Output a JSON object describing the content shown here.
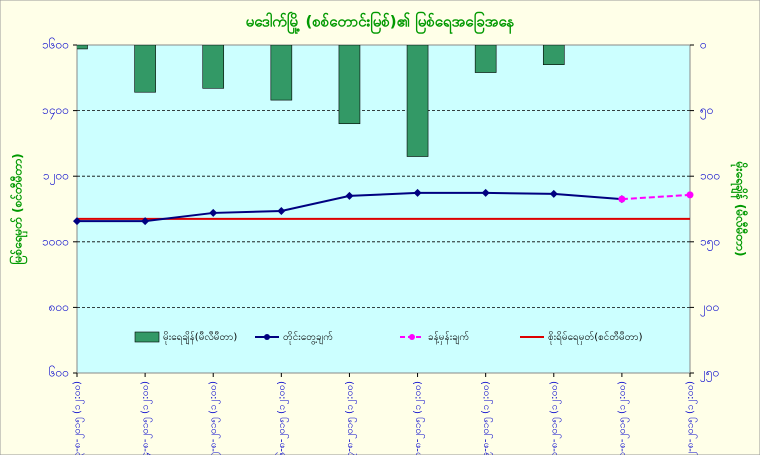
{
  "chart_data": {
    "type": "combo",
    "title": "မဒေါက်မြို့ (စစ်တောင်းမြစ်)၏ မြစ်ရေအခြေအနေ",
    "y_label": "မြစ်ရေမှတ် (စင်တီမီတာ)",
    "y2_label": "မိုးရေချိန် (မီလီမီတာ)",
    "categories": [
      "၃-၈-၂၀၁၅ (၁၂:၀၀)",
      "၄-၈-၂၀၁၅ (၁၂:၀၀)",
      "၅-၈-၂၀၁၅ (၁၂:၀၀)",
      "၆-၈-၂၀၁၅ (၁၂:၀၀)",
      "၇-၈-၂၀၁၅ (၁၂:၀၀)",
      "၈-၈-၂၀၁၅ (၁၂:၀၀)",
      "၉-၈-၂၀၁၅ (၁၂:၀၀)",
      "၁၀-၈-၂၀၁၅ (၁၂:၀၀)",
      "၁၁-၈-၂၀၁၅ (၁၂:၀၀)",
      "၁၂-၈-၂၀၁၅ (၁၂:၀၀)"
    ],
    "series": [
      {
        "name": "မိုးရေချိန်(မီလီမီတာ)",
        "kind": "bar",
        "axis": "y2",
        "color": "#339966",
        "values": [
          3,
          36,
          33,
          42,
          60,
          85,
          21,
          15,
          null,
          null
        ]
      },
      {
        "name": "တိုင်းတွေ့ချက်",
        "kind": "line",
        "color": "#000080",
        "marker": "diamond",
        "values": [
          1063,
          1063,
          1088,
          1094,
          1140,
          1149,
          1149,
          1146,
          1130,
          null
        ]
      },
      {
        "name": "ခန့်မှန်းချက်",
        "kind": "line",
        "color": "#ff00ff",
        "dashed": true,
        "marker": "circle",
        "values": [
          null,
          null,
          null,
          null,
          null,
          null,
          null,
          null,
          1130,
          1143
        ]
      }
    ],
    "reference_line": {
      "name": "စိုးရိမ်ရေမှတ်(စင်တီမီတာ)",
      "value": 1070,
      "color": "#dd0000"
    },
    "ylim": [
      600,
      1600
    ],
    "yticks": [
      {
        "value": 600,
        "label": "၆၀၀"
      },
      {
        "value": 800,
        "label": "၈၀၀"
      },
      {
        "value": 1000,
        "label": "၁၀၀၀"
      },
      {
        "value": 1200,
        "label": "၁၂၀၀"
      },
      {
        "value": 1400,
        "label": "၁၄၀၀"
      },
      {
        "value": 1600,
        "label": "၁၆၀၀"
      }
    ],
    "y2lim": [
      0,
      250
    ],
    "y2_inverted": true,
    "y2ticks": [
      {
        "value": 0,
        "label": "၀"
      },
      {
        "value": 50,
        "label": "၅၀"
      },
      {
        "value": 100,
        "label": "၁၀၀"
      },
      {
        "value": 150,
        "label": "၁၅၀"
      },
      {
        "value": 200,
        "label": "၂၀၀"
      },
      {
        "value": 250,
        "label": "၂၅၀"
      }
    ],
    "grid": true
  }
}
